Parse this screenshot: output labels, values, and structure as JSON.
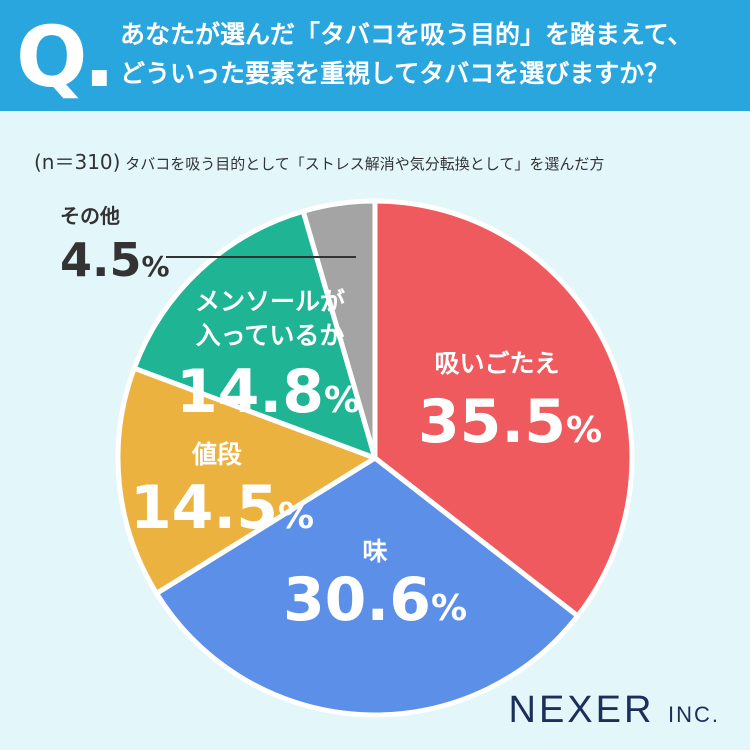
{
  "header": {
    "q_mark": "Q.",
    "question_line1": "あなたが選んだ「タバコを吸う目的」を踏まえて、",
    "question_line2": "どういった要素を重視してタバコを選びますか？"
  },
  "subtitle": {
    "n_label": "(n＝310)",
    "text": "タバコを吸う目的として「ストレス解消や気分転換として」を選んだ方"
  },
  "chart_data": {
    "type": "pie",
    "start": "12 o'clock",
    "direction": "clockwise",
    "slices": [
      {
        "label_lines": [
          "吸いごたえ"
        ],
        "value": 35.5,
        "value_text": "35.5",
        "unit": "%",
        "color": "#ee5a5e"
      },
      {
        "label_lines": [
          "味"
        ],
        "value": 30.6,
        "value_text": "30.6",
        "unit": "%",
        "color": "#5b8fe8"
      },
      {
        "label_lines": [
          "値段"
        ],
        "value": 14.5,
        "value_text": "14.5",
        "unit": "%",
        "color": "#ecb23f"
      },
      {
        "label_lines": [
          "メンソールが",
          "入っているか"
        ],
        "value": 14.8,
        "value_text": "14.8",
        "unit": "%",
        "color": "#1fb594"
      },
      {
        "label_lines": [
          "その他"
        ],
        "value": 4.5,
        "value_text": "4.5",
        "unit": "%",
        "color": "#a4a4a4"
      }
    ]
  },
  "footer": {
    "logo_main": "NEXER",
    "logo_small": "INC."
  }
}
